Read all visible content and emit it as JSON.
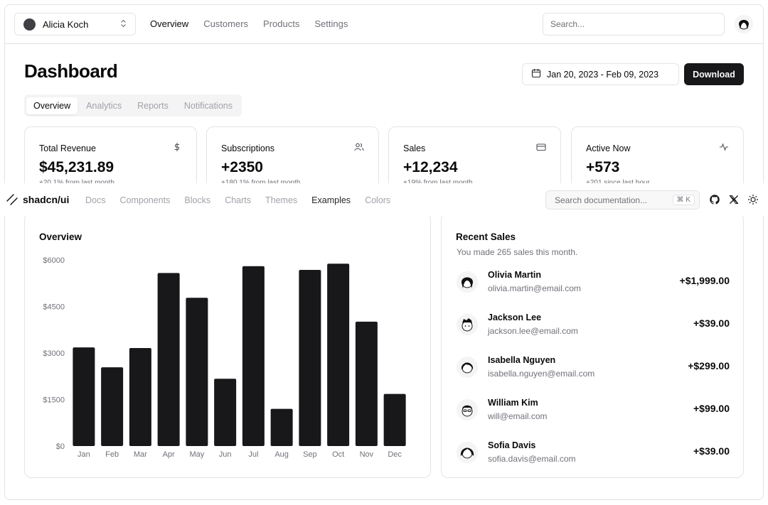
{
  "topnav": {
    "team": "Alicia Koch",
    "links": [
      "Overview",
      "Customers",
      "Products",
      "Settings"
    ],
    "search_placeholder": "Search..."
  },
  "header": {
    "title": "Dashboard",
    "date_range": "Jan 20, 2023 - Feb 09, 2023",
    "download_label": "Download"
  },
  "tabs": [
    "Overview",
    "Analytics",
    "Reports",
    "Notifications"
  ],
  "stats": [
    {
      "title": "Total Revenue",
      "value": "$45,231.89",
      "sub": "+20.1% from last month",
      "icon": "dollar-icon"
    },
    {
      "title": "Subscriptions",
      "value": "+2350",
      "sub": "+180.1% from last month",
      "icon": "users-icon"
    },
    {
      "title": "Sales",
      "value": "+12,234",
      "sub": "+19% from last month",
      "icon": "credit-card-icon"
    },
    {
      "title": "Active Now",
      "value": "+573",
      "sub": "+201 since last hour",
      "icon": "activity-icon"
    }
  ],
  "docs_bar": {
    "brand": "shadcn/ui",
    "links": [
      "Docs",
      "Components",
      "Blocks",
      "Charts",
      "Themes",
      "Examples",
      "Colors"
    ],
    "active_link": "Examples",
    "search_placeholder": "Search documentation...",
    "shortcut": "⌘ K"
  },
  "overview": {
    "title": "Overview"
  },
  "chart_data": {
    "type": "bar",
    "categories": [
      "Jan",
      "Feb",
      "Mar",
      "Apr",
      "May",
      "Jun",
      "Jul",
      "Aug",
      "Sep",
      "Oct",
      "Nov",
      "Dec"
    ],
    "values": [
      3180,
      2540,
      3160,
      5580,
      4780,
      2170,
      5800,
      1200,
      5680,
      5880,
      4010,
      1680
    ],
    "y_ticks": [
      "$0",
      "$1500",
      "$3000",
      "$4500",
      "$6000"
    ],
    "ylim": [
      0,
      6000
    ],
    "bar_color": "#18181b"
  },
  "recent_sales": {
    "title": "Recent Sales",
    "description": "You made 265 sales this month.",
    "items": [
      {
        "name": "Olivia Martin",
        "email": "olivia.martin@email.com",
        "amount": "+$1,999.00"
      },
      {
        "name": "Jackson Lee",
        "email": "jackson.lee@email.com",
        "amount": "+$39.00"
      },
      {
        "name": "Isabella Nguyen",
        "email": "isabella.nguyen@email.com",
        "amount": "+$299.00"
      },
      {
        "name": "William Kim",
        "email": "will@email.com",
        "amount": "+$99.00"
      },
      {
        "name": "Sofia Davis",
        "email": "sofia.davis@email.com",
        "amount": "+$39.00"
      }
    ]
  }
}
